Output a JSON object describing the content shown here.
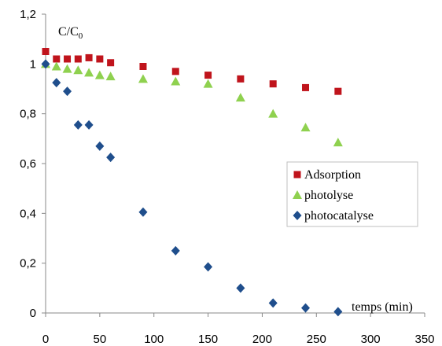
{
  "chart_data": {
    "type": "scatter",
    "xlabel": "temps (min)",
    "ylabel_main": "C/C",
    "ylabel_sub": "0",
    "xlim": [
      0,
      350
    ],
    "ylim": [
      0,
      1.2
    ],
    "x_ticks": [
      0,
      50,
      100,
      150,
      200,
      250,
      300,
      350
    ],
    "x_tick_labels": [
      "0",
      "50",
      "100",
      "150",
      "200",
      "250",
      "300",
      "350"
    ],
    "y_ticks": [
      0,
      0.2,
      0.4,
      0.6,
      0.8,
      1.0,
      1.2
    ],
    "y_tick_labels": [
      "0",
      "0,2",
      "0,4",
      "0,6",
      "0,8",
      "1",
      "1,2"
    ],
    "grid": false,
    "legend_position": "right",
    "series": [
      {
        "name": "Adsorption",
        "marker": "square",
        "color": "#c0141c",
        "points": [
          [
            0,
            1.05
          ],
          [
            10,
            1.02
          ],
          [
            20,
            1.02
          ],
          [
            30,
            1.02
          ],
          [
            40,
            1.025
          ],
          [
            50,
            1.02
          ],
          [
            60,
            1.005
          ],
          [
            90,
            0.99
          ],
          [
            120,
            0.97
          ],
          [
            150,
            0.955
          ],
          [
            180,
            0.94
          ],
          [
            210,
            0.92
          ],
          [
            240,
            0.905
          ],
          [
            270,
            0.89
          ]
        ]
      },
      {
        "name": "photolyse",
        "marker": "triangle",
        "color": "#8fd14f",
        "points": [
          [
            0,
            1.0
          ],
          [
            10,
            0.99
          ],
          [
            20,
            0.98
          ],
          [
            30,
            0.975
          ],
          [
            40,
            0.965
          ],
          [
            50,
            0.955
          ],
          [
            60,
            0.95
          ],
          [
            90,
            0.94
          ],
          [
            120,
            0.93
          ],
          [
            150,
            0.92
          ],
          [
            180,
            0.865
          ],
          [
            210,
            0.8
          ],
          [
            240,
            0.745
          ],
          [
            270,
            0.685
          ]
        ]
      },
      {
        "name": "photocatalyse",
        "marker": "diamond",
        "color": "#1f4e8c",
        "points": [
          [
            0,
            1.0
          ],
          [
            10,
            0.925
          ],
          [
            20,
            0.89
          ],
          [
            30,
            0.755
          ],
          [
            40,
            0.755
          ],
          [
            50,
            0.67
          ],
          [
            60,
            0.625
          ],
          [
            90,
            0.405
          ],
          [
            120,
            0.25
          ],
          [
            150,
            0.185
          ],
          [
            180,
            0.1
          ],
          [
            210,
            0.04
          ],
          [
            240,
            0.02
          ],
          [
            270,
            0.005
          ]
        ]
      }
    ]
  }
}
